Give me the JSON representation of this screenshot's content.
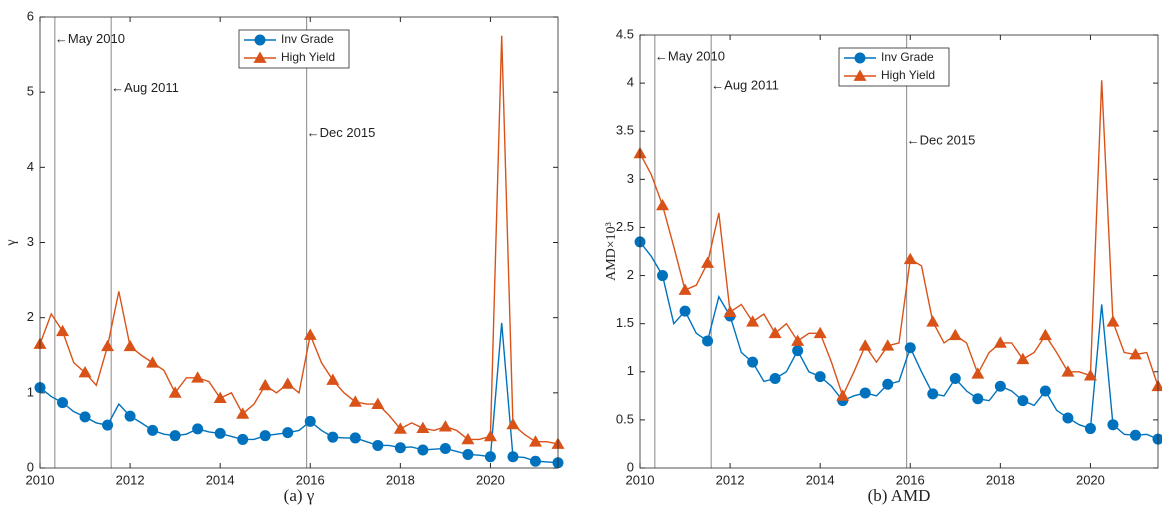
{
  "chart_data": [
    {
      "type": "line",
      "caption": "(a) γ",
      "ylabel": "γ",
      "x": [
        2010,
        2010.25,
        2010.5,
        2010.75,
        2011,
        2011.25,
        2011.5,
        2011.75,
        2012,
        2012.25,
        2012.5,
        2012.75,
        2013,
        2013.25,
        2013.5,
        2013.75,
        2014,
        2014.25,
        2014.5,
        2014.75,
        2015,
        2015.25,
        2015.5,
        2015.75,
        2016,
        2016.25,
        2016.5,
        2016.75,
        2017,
        2017.25,
        2017.5,
        2017.75,
        2018,
        2018.25,
        2018.5,
        2018.75,
        2019,
        2019.25,
        2019.5,
        2019.75,
        2020,
        2020.25,
        2020.5,
        2020.75,
        2021,
        2021.25,
        2021.5
      ],
      "series": [
        {
          "name": "Inv Grade",
          "color": "#0072BD",
          "marker": "o",
          "values": [
            1.07,
            0.95,
            0.87,
            0.75,
            0.68,
            0.6,
            0.57,
            0.85,
            0.69,
            0.6,
            0.5,
            0.45,
            0.43,
            0.45,
            0.52,
            0.48,
            0.46,
            0.42,
            0.38,
            0.38,
            0.43,
            0.45,
            0.47,
            0.5,
            0.62,
            0.5,
            0.41,
            0.4,
            0.4,
            0.35,
            0.3,
            0.3,
            0.27,
            0.28,
            0.24,
            0.25,
            0.26,
            0.22,
            0.18,
            0.17,
            0.15,
            1.93,
            0.15,
            0.14,
            0.09,
            0.08,
            0.07
          ]
        },
        {
          "name": "High Yield",
          "color": "#D95319",
          "marker": "^",
          "values": [
            1.65,
            2.05,
            1.82,
            1.4,
            1.27,
            1.1,
            1.62,
            2.35,
            1.62,
            1.5,
            1.4,
            1.3,
            1.0,
            1.2,
            1.2,
            1.15,
            0.93,
            1.0,
            0.72,
            0.85,
            1.1,
            1.0,
            1.12,
            1.0,
            1.77,
            1.4,
            1.17,
            1.0,
            0.88,
            0.85,
            0.85,
            0.7,
            0.52,
            0.6,
            0.53,
            0.5,
            0.55,
            0.5,
            0.38,
            0.38,
            0.42,
            5.75,
            0.58,
            0.45,
            0.35,
            0.35,
            0.32
          ]
        }
      ],
      "marker_every": 2,
      "annotations": [
        {
          "x": 2010.33,
          "y": 5.7,
          "text": "←May 2010"
        },
        {
          "x": 2011.58,
          "y": 5.05,
          "text": "←Aug 2011"
        },
        {
          "x": 2015.92,
          "y": 4.45,
          "text": "←Dec 2015"
        }
      ],
      "xlim": [
        2010,
        2021.5
      ],
      "xticks": [
        2010,
        2012,
        2014,
        2016,
        2018,
        2020
      ],
      "ylim": [
        0,
        6
      ],
      "yticks": [
        0,
        1,
        2,
        3,
        4,
        5,
        6
      ],
      "legend": "upper center"
    },
    {
      "type": "line",
      "caption": "(b) AMD",
      "ylabel": "AMD×10³",
      "x": [
        2010,
        2010.25,
        2010.5,
        2010.75,
        2011,
        2011.25,
        2011.5,
        2011.75,
        2012,
        2012.25,
        2012.5,
        2012.75,
        2013,
        2013.25,
        2013.5,
        2013.75,
        2014,
        2014.25,
        2014.5,
        2014.75,
        2015,
        2015.25,
        2015.5,
        2015.75,
        2016,
        2016.25,
        2016.5,
        2016.75,
        2017,
        2017.25,
        2017.5,
        2017.75,
        2018,
        2018.25,
        2018.5,
        2018.75,
        2019,
        2019.25,
        2019.5,
        2019.75,
        2020,
        2020.25,
        2020.5,
        2020.75,
        2021,
        2021.25,
        2021.5
      ],
      "series": [
        {
          "name": "Inv Grade",
          "color": "#0072BD",
          "marker": "o",
          "values": [
            2.35,
            2.2,
            2.0,
            1.5,
            1.63,
            1.4,
            1.32,
            1.78,
            1.58,
            1.2,
            1.1,
            0.9,
            0.93,
            1.0,
            1.22,
            1.0,
            0.95,
            0.85,
            0.7,
            0.75,
            0.78,
            0.75,
            0.87,
            0.9,
            1.25,
            1.0,
            0.77,
            0.75,
            0.93,
            0.8,
            0.72,
            0.7,
            0.85,
            0.8,
            0.7,
            0.65,
            0.8,
            0.6,
            0.52,
            0.45,
            0.41,
            1.7,
            0.45,
            0.35,
            0.34,
            0.35,
            0.3
          ]
        },
        {
          "name": "High Yield",
          "color": "#D95319",
          "marker": "^",
          "values": [
            3.27,
            3.05,
            2.73,
            2.3,
            1.85,
            1.9,
            2.13,
            2.65,
            1.62,
            1.7,
            1.52,
            1.6,
            1.4,
            1.5,
            1.32,
            1.4,
            1.4,
            1.1,
            0.75,
            1.0,
            1.27,
            1.1,
            1.27,
            1.3,
            2.17,
            2.1,
            1.52,
            1.3,
            1.38,
            1.3,
            0.98,
            1.2,
            1.3,
            1.3,
            1.13,
            1.2,
            1.38,
            1.2,
            1.0,
            1.0,
            0.96,
            4.03,
            1.52,
            1.2,
            1.18,
            1.2,
            0.85
          ]
        }
      ],
      "marker_every": 2,
      "annotations": [
        {
          "x": 2010.33,
          "y": 4.27,
          "text": "←May 2010"
        },
        {
          "x": 2011.58,
          "y": 3.97,
          "text": "←Aug 2011"
        },
        {
          "x": 2015.92,
          "y": 3.4,
          "text": "←Dec 2015"
        }
      ],
      "xlim": [
        2010,
        2021.5
      ],
      "xticks": [
        2010,
        2012,
        2014,
        2016,
        2018,
        2020
      ],
      "ylim": [
        0,
        4.5
      ],
      "yticks": [
        0,
        0.5,
        1,
        1.5,
        2,
        2.5,
        3,
        3.5,
        4,
        4.5
      ],
      "legend": "upper center"
    }
  ]
}
